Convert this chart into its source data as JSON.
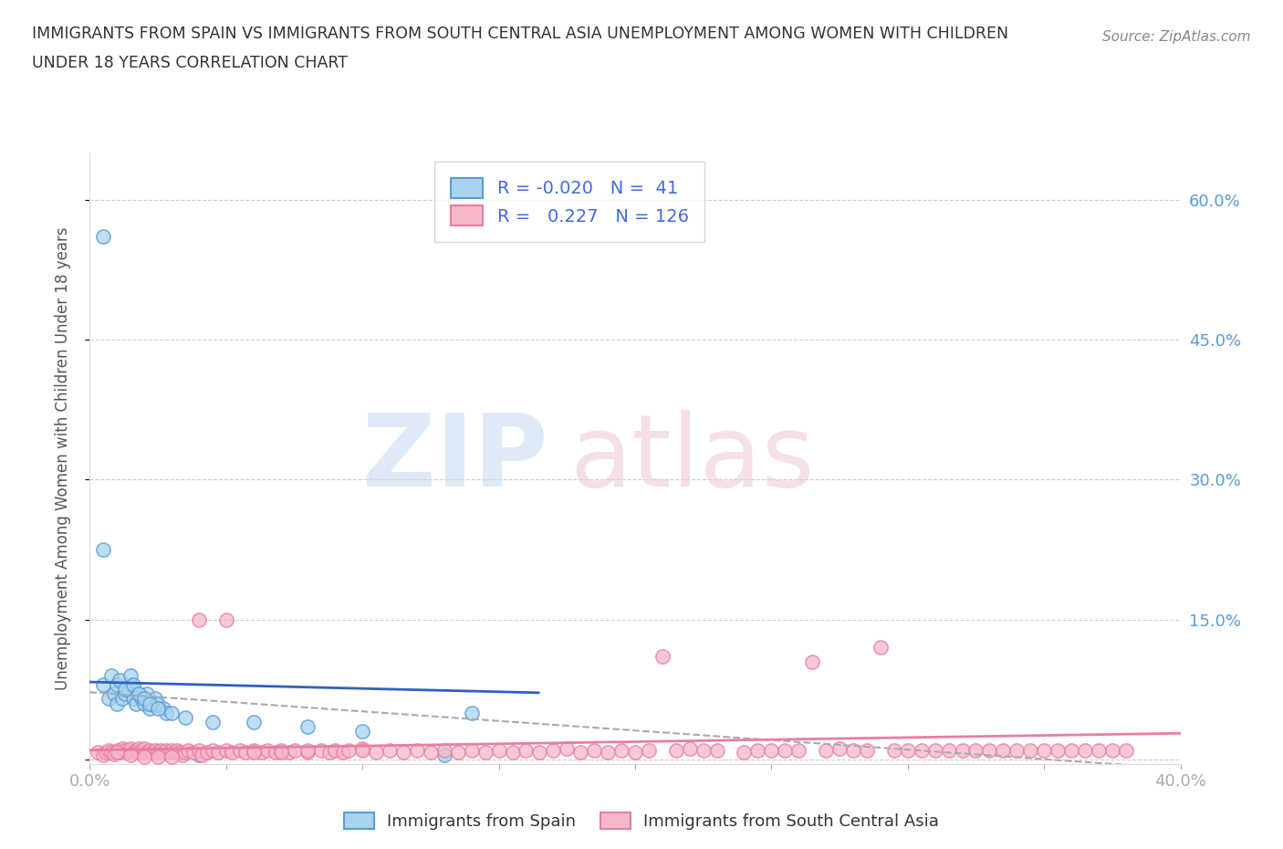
{
  "title_line1": "IMMIGRANTS FROM SPAIN VS IMMIGRANTS FROM SOUTH CENTRAL ASIA UNEMPLOYMENT AMONG WOMEN WITH CHILDREN",
  "title_line2": "UNDER 18 YEARS CORRELATION CHART",
  "source": "Source: ZipAtlas.com",
  "ylabel": "Unemployment Among Women with Children Under 18 years",
  "xlim": [
    0.0,
    0.4
  ],
  "ylim": [
    -0.005,
    0.65
  ],
  "ytick_positions": [
    0.0,
    0.15,
    0.3,
    0.45,
    0.6
  ],
  "ytick_labels": [
    "",
    "15.0%",
    "30.0%",
    "45.0%",
    "60.0%"
  ],
  "color_spain": "#A8D4F0",
  "color_south_central_asia": "#F5B8C8",
  "color_spain_edge": "#5B9BD5",
  "color_south_central_asia_edge": "#E87EA1",
  "legend_spain_R": "-0.020",
  "legend_spain_N": "41",
  "legend_asia_R": "0.227",
  "legend_asia_N": "126",
  "trend_spain_color": "#3060C0",
  "trend_asia_color": "#E87EA1",
  "trend_combined_color": "#AAAAAA",
  "spain_x": [
    0.005,
    0.007,
    0.009,
    0.01,
    0.012,
    0.013,
    0.014,
    0.015,
    0.016,
    0.017,
    0.018,
    0.019,
    0.02,
    0.021,
    0.022,
    0.023,
    0.024,
    0.025,
    0.027,
    0.028,
    0.005,
    0.008,
    0.01,
    0.011,
    0.013,
    0.015,
    0.016,
    0.018,
    0.02,
    0.022,
    0.025,
    0.03,
    0.035,
    0.04,
    0.045,
    0.06,
    0.08,
    0.1,
    0.13,
    0.14,
    0.005
  ],
  "spain_y": [
    0.56,
    0.065,
    0.07,
    0.06,
    0.065,
    0.07,
    0.075,
    0.08,
    0.065,
    0.06,
    0.07,
    0.065,
    0.06,
    0.07,
    0.055,
    0.06,
    0.065,
    0.06,
    0.055,
    0.05,
    0.08,
    0.09,
    0.08,
    0.085,
    0.075,
    0.09,
    0.08,
    0.07,
    0.065,
    0.06,
    0.055,
    0.05,
    0.045,
    0.005,
    0.04,
    0.04,
    0.035,
    0.03,
    0.005,
    0.05,
    0.225
  ],
  "asia_x": [
    0.003,
    0.005,
    0.006,
    0.007,
    0.008,
    0.009,
    0.01,
    0.011,
    0.012,
    0.013,
    0.014,
    0.015,
    0.015,
    0.016,
    0.017,
    0.018,
    0.018,
    0.019,
    0.02,
    0.02,
    0.021,
    0.022,
    0.023,
    0.024,
    0.025,
    0.026,
    0.027,
    0.028,
    0.029,
    0.03,
    0.031,
    0.032,
    0.033,
    0.034,
    0.035,
    0.036,
    0.038,
    0.04,
    0.041,
    0.043,
    0.045,
    0.047,
    0.05,
    0.052,
    0.055,
    0.057,
    0.06,
    0.063,
    0.065,
    0.068,
    0.07,
    0.073,
    0.075,
    0.08,
    0.085,
    0.088,
    0.09,
    0.093,
    0.095,
    0.1,
    0.105,
    0.11,
    0.115,
    0.12,
    0.125,
    0.13,
    0.135,
    0.14,
    0.145,
    0.15,
    0.155,
    0.16,
    0.165,
    0.17,
    0.175,
    0.18,
    0.185,
    0.19,
    0.195,
    0.2,
    0.205,
    0.21,
    0.215,
    0.22,
    0.225,
    0.23,
    0.24,
    0.245,
    0.25,
    0.255,
    0.26,
    0.265,
    0.27,
    0.275,
    0.28,
    0.285,
    0.29,
    0.295,
    0.3,
    0.305,
    0.31,
    0.315,
    0.32,
    0.325,
    0.33,
    0.335,
    0.34,
    0.345,
    0.35,
    0.355,
    0.36,
    0.365,
    0.37,
    0.375,
    0.38,
    0.01,
    0.015,
    0.02,
    0.025,
    0.03,
    0.04,
    0.05,
    0.06,
    0.07,
    0.08,
    0.1
  ],
  "asia_y": [
    0.008,
    0.005,
    0.008,
    0.01,
    0.008,
    0.006,
    0.01,
    0.008,
    0.012,
    0.01,
    0.008,
    0.01,
    0.012,
    0.008,
    0.01,
    0.012,
    0.008,
    0.01,
    0.008,
    0.012,
    0.008,
    0.01,
    0.008,
    0.01,
    0.008,
    0.01,
    0.008,
    0.01,
    0.008,
    0.01,
    0.008,
    0.01,
    0.008,
    0.005,
    0.008,
    0.01,
    0.008,
    0.01,
    0.005,
    0.008,
    0.01,
    0.008,
    0.01,
    0.008,
    0.01,
    0.008,
    0.01,
    0.008,
    0.01,
    0.008,
    0.01,
    0.008,
    0.01,
    0.008,
    0.01,
    0.008,
    0.01,
    0.008,
    0.01,
    0.012,
    0.008,
    0.01,
    0.008,
    0.01,
    0.008,
    0.01,
    0.008,
    0.01,
    0.008,
    0.01,
    0.008,
    0.01,
    0.008,
    0.01,
    0.012,
    0.008,
    0.01,
    0.008,
    0.01,
    0.008,
    0.01,
    0.11,
    0.01,
    0.012,
    0.01,
    0.01,
    0.008,
    0.01,
    0.01,
    0.01,
    0.01,
    0.105,
    0.01,
    0.012,
    0.01,
    0.01,
    0.12,
    0.01,
    0.01,
    0.01,
    0.01,
    0.01,
    0.01,
    0.01,
    0.01,
    0.01,
    0.01,
    0.01,
    0.01,
    0.01,
    0.01,
    0.01,
    0.01,
    0.01,
    0.01,
    0.008,
    0.005,
    0.003,
    0.003,
    0.003,
    0.15,
    0.15,
    0.008,
    0.008,
    0.01,
    0.01
  ]
}
